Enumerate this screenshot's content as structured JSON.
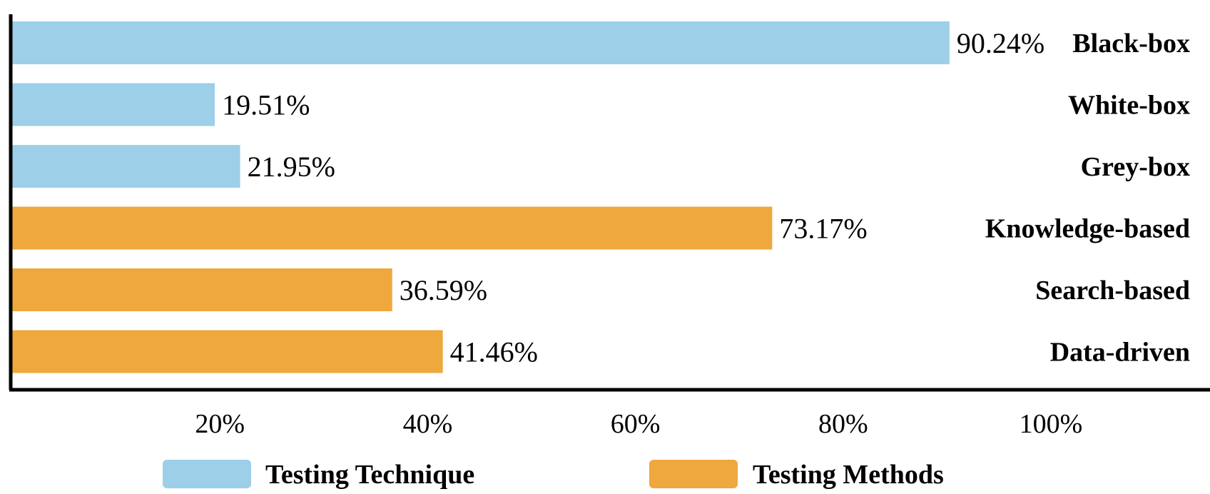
{
  "chart_data": {
    "type": "bar",
    "orientation": "horizontal",
    "categories": [
      "Black-box",
      "White-box",
      "Grey-box",
      "Knowledge-based",
      "Search-based",
      "Data-driven"
    ],
    "values": [
      90.24,
      19.51,
      21.95,
      73.17,
      36.59,
      41.46
    ],
    "value_labels": [
      "90.24%",
      "19.51%",
      "21.95%",
      "73.17%",
      "36.59%",
      "41.46%"
    ],
    "groups": [
      "Testing Technique",
      "Testing Technique",
      "Testing Technique",
      "Testing Methods",
      "Testing Methods",
      "Testing Methods"
    ],
    "x_ticks": [
      20,
      40,
      60,
      80,
      100
    ],
    "x_tick_labels": [
      "20%",
      "40%",
      "60%",
      "80%",
      "100%"
    ],
    "xlim": [
      0,
      114
    ],
    "grid": false,
    "legend": {
      "placement": "bottom",
      "items": [
        {
          "label": "Testing Technique",
          "color": "#9dcfe8"
        },
        {
          "label": "Testing Methods",
          "color": "#efa83d"
        }
      ]
    },
    "title": "",
    "xlabel": "",
    "ylabel": ""
  }
}
